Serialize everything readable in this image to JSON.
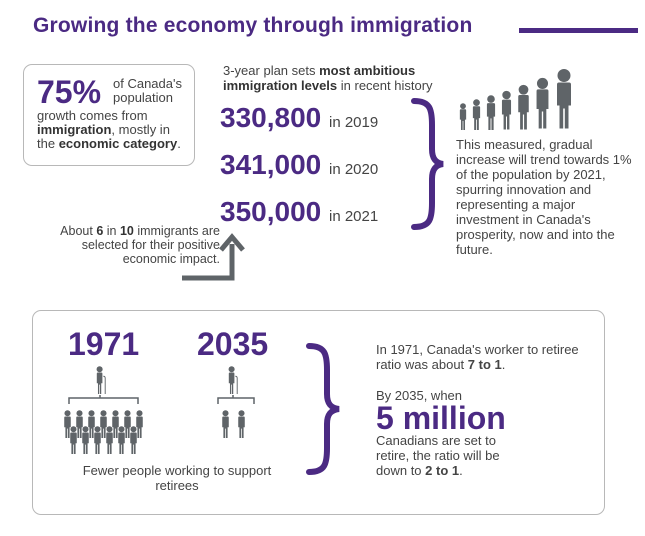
{
  "header": {
    "title": "Growing the economy through immigration"
  },
  "growth_box": {
    "percent": "75%",
    "side_line1": "of Canada's",
    "side_line2": "population",
    "line3": "growth comes from",
    "line4_bold": "immigration",
    "line4_rest": ", mostly in",
    "line5_pre": "the ",
    "line5_bold": "economic category",
    "line5_end": "."
  },
  "plan": {
    "head_pre": "3-year plan sets ",
    "head_bold1": "most ambitious",
    "head_bold2": "immigration levels",
    "head_rest": " in recent history",
    "levels": [
      {
        "value": "330,800",
        "label": "in 2019"
      },
      {
        "value": "341,000",
        "label": "in 2020"
      },
      {
        "value": "350,000",
        "label": "in 2021"
      }
    ]
  },
  "increase_text": "This measured, gradual increase will trend towards 1% of the population by 2021, spurring innovation and representing a major investment in Canada's prosperity, now and into the future.",
  "selection_note": {
    "pre": "About ",
    "b1": "6",
    "mid": " in ",
    "b2": "10",
    "rest": " immigrants are selected for their positive economic impact."
  },
  "comparison": {
    "year_1971": "1971",
    "year_2035": "2035",
    "fewer_caption": "Fewer people working to support retirees",
    "ratio_1971_pre": "In 1971, Canada's worker to retiree ratio was about ",
    "ratio_1971_bold": "7 to 1",
    "ratio_1971_end": ".",
    "by_2035": "By 2035, when",
    "five_million": "5 million",
    "retire_pre": "Canadians are set to retire, the ratio will be down to ",
    "retire_bold": "2 to 1",
    "retire_end": "."
  },
  "colors": {
    "accent": "#4b2a83",
    "icon_gray": "#5f6468",
    "border": "#b8b8b8"
  },
  "icons": [
    "person-icon",
    "retiree-with-cane-icon",
    "brace-icon",
    "arrow-up-icon"
  ]
}
